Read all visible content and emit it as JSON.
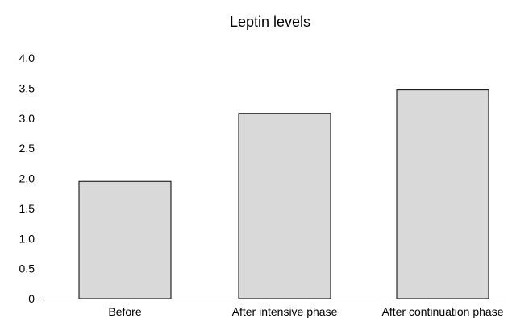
{
  "chart_data": {
    "type": "bar",
    "title": "Leptin levels",
    "xlabel": "",
    "ylabel": "",
    "categories": [
      "Before",
      "After intensive phase",
      "After continuation phase"
    ],
    "values": [
      1.95,
      3.08,
      3.47
    ],
    "ylim": [
      0,
      4.0
    ],
    "yticks": [
      "0",
      "0.5",
      "1.0",
      "1.5",
      "2.0",
      "2.5",
      "3.0",
      "3.5",
      "4.0"
    ],
    "ytick_values": [
      0,
      0.5,
      1.0,
      1.5,
      2.0,
      2.5,
      3.0,
      3.5,
      4.0
    ],
    "grid": false,
    "legend": "none",
    "colors": {
      "bar_fill": "#d9d9d9",
      "bar_stroke": "#000000",
      "axis": "#000000"
    }
  }
}
